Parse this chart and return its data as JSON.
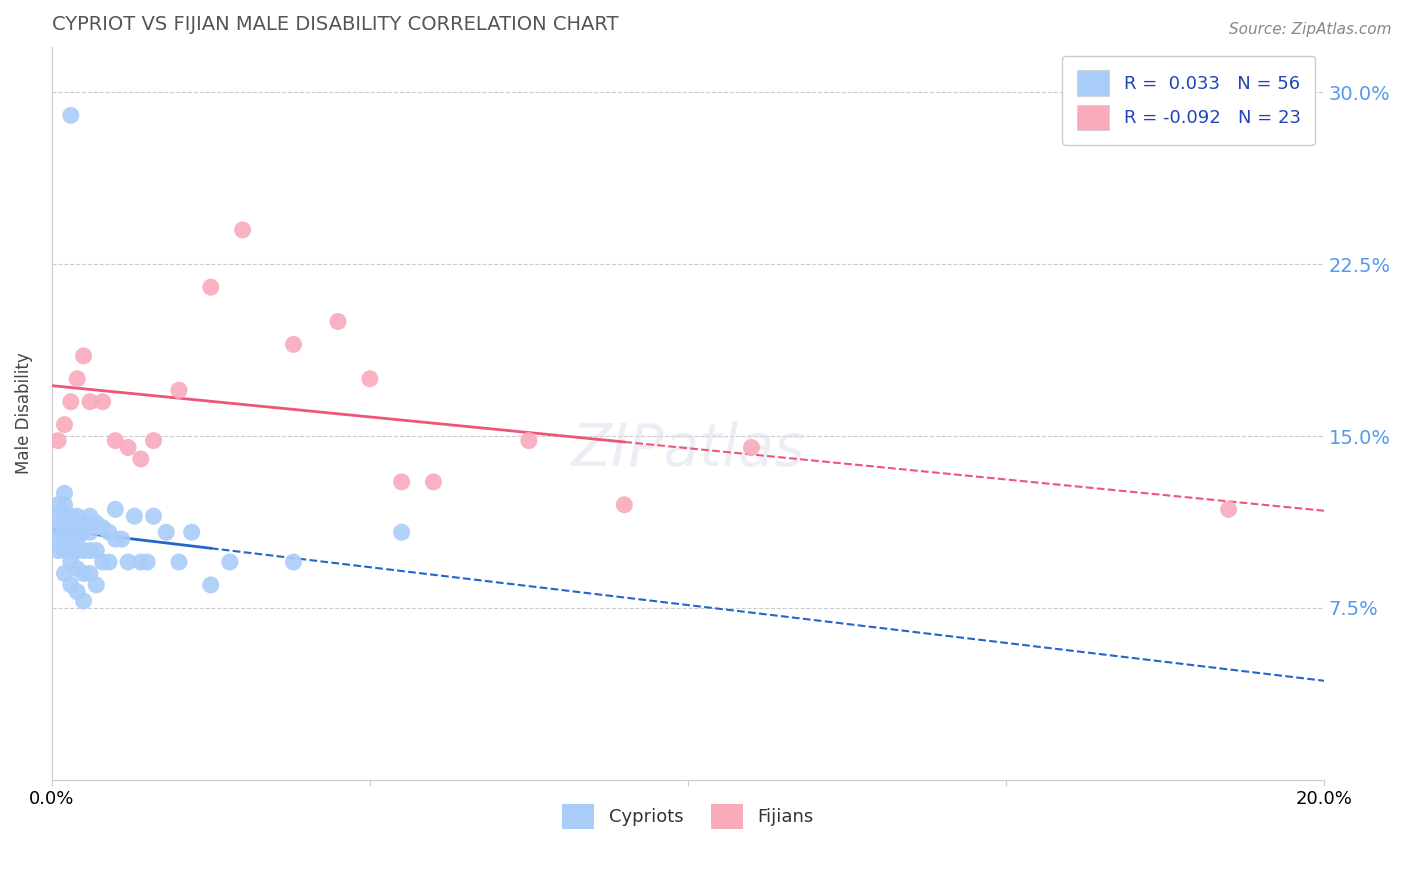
{
  "title": "CYPRIOT VS FIJIAN MALE DISABILITY CORRELATION CHART",
  "source": "Source: ZipAtlas.com",
  "ylabel": "Male Disability",
  "xlim": [
    0.0,
    0.2
  ],
  "ylim": [
    0.0,
    0.32
  ],
  "ytick_positions": [
    0.075,
    0.15,
    0.225,
    0.3
  ],
  "ytick_labels": [
    "7.5%",
    "15.0%",
    "22.5%",
    "30.0%"
  ],
  "xtick_positions": [
    0.0,
    0.05,
    0.1,
    0.15,
    0.2
  ],
  "xtick_labels": [
    "0.0%",
    "",
    "",
    "",
    "20.0%"
  ],
  "cypriot_color": "#aaccf8",
  "fijian_color": "#f9aabb",
  "cypriot_R": 0.033,
  "cypriot_N": 56,
  "fijian_R": -0.092,
  "fijian_N": 23,
  "cypriot_x": [
    0.001,
    0.001,
    0.001,
    0.001,
    0.001,
    0.002,
    0.002,
    0.002,
    0.002,
    0.002,
    0.002,
    0.002,
    0.003,
    0.003,
    0.003,
    0.003,
    0.003,
    0.003,
    0.004,
    0.004,
    0.004,
    0.004,
    0.004,
    0.004,
    0.005,
    0.005,
    0.005,
    0.005,
    0.005,
    0.006,
    0.006,
    0.006,
    0.006,
    0.007,
    0.007,
    0.007,
    0.008,
    0.008,
    0.009,
    0.009,
    0.01,
    0.01,
    0.011,
    0.012,
    0.013,
    0.014,
    0.015,
    0.016,
    0.018,
    0.02,
    0.022,
    0.025,
    0.028,
    0.038,
    0.055,
    0.003
  ],
  "cypriot_y": [
    0.12,
    0.115,
    0.11,
    0.105,
    0.1,
    0.125,
    0.12,
    0.115,
    0.11,
    0.105,
    0.1,
    0.09,
    0.115,
    0.11,
    0.105,
    0.1,
    0.095,
    0.085,
    0.115,
    0.11,
    0.105,
    0.1,
    0.092,
    0.082,
    0.112,
    0.108,
    0.1,
    0.09,
    0.078,
    0.115,
    0.108,
    0.1,
    0.09,
    0.112,
    0.1,
    0.085,
    0.11,
    0.095,
    0.108,
    0.095,
    0.118,
    0.105,
    0.105,
    0.095,
    0.115,
    0.095,
    0.095,
    0.115,
    0.108,
    0.095,
    0.108,
    0.085,
    0.095,
    0.095,
    0.108,
    0.29
  ],
  "fijian_x": [
    0.001,
    0.002,
    0.003,
    0.004,
    0.005,
    0.006,
    0.008,
    0.01,
    0.012,
    0.014,
    0.016,
    0.02,
    0.025,
    0.03,
    0.038,
    0.045,
    0.05,
    0.055,
    0.06,
    0.075,
    0.09,
    0.11,
    0.185
  ],
  "fijian_y": [
    0.148,
    0.155,
    0.165,
    0.175,
    0.185,
    0.165,
    0.165,
    0.148,
    0.145,
    0.14,
    0.148,
    0.17,
    0.215,
    0.24,
    0.19,
    0.2,
    0.175,
    0.13,
    0.13,
    0.148,
    0.12,
    0.145,
    0.118
  ]
}
